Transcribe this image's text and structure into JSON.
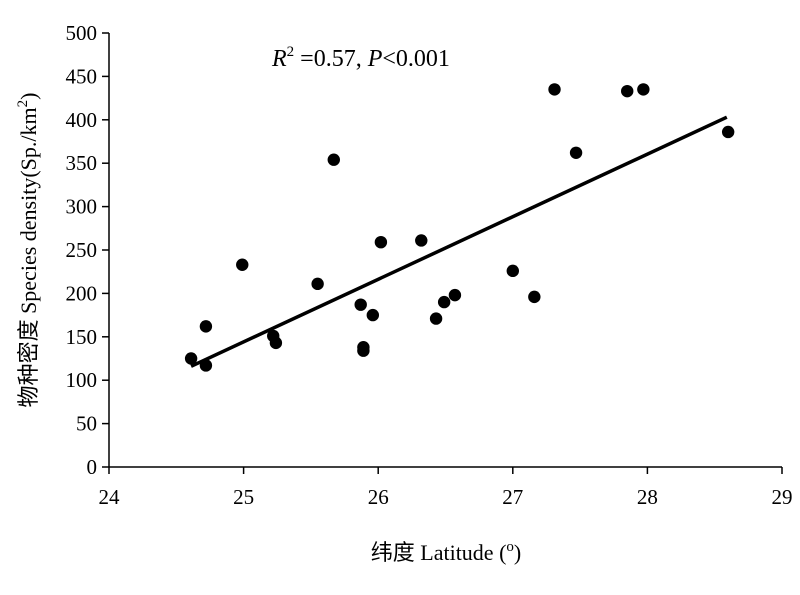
{
  "chart_data": {
    "type": "scatter",
    "xlabel": "纬度 Latitude (o)",
    "ylabel": "物种密度 Species density(Sp./km2)",
    "annotation": {
      "r_symbol": "R",
      "r_exponent": "2",
      "r_value": " =0.57, ",
      "p_symbol": "P",
      "p_value": "<0.001"
    },
    "xlim": [
      24,
      29
    ],
    "ylim": [
      0,
      500
    ],
    "x_ticks": [
      24,
      25,
      26,
      27,
      28,
      29
    ],
    "y_ticks": [
      0,
      50,
      100,
      150,
      200,
      250,
      300,
      350,
      400,
      450,
      500
    ],
    "grid": false,
    "legend": "none",
    "point_color": "#000000",
    "line_color": "#000000",
    "points": [
      {
        "x": 24.61,
        "y": 125
      },
      {
        "x": 24.72,
        "y": 162
      },
      {
        "x": 24.72,
        "y": 117
      },
      {
        "x": 24.99,
        "y": 233
      },
      {
        "x": 25.22,
        "y": 151
      },
      {
        "x": 25.24,
        "y": 143
      },
      {
        "x": 25.55,
        "y": 211
      },
      {
        "x": 25.67,
        "y": 354
      },
      {
        "x": 25.87,
        "y": 187
      },
      {
        "x": 25.89,
        "y": 138
      },
      {
        "x": 25.89,
        "y": 134
      },
      {
        "x": 25.96,
        "y": 175
      },
      {
        "x": 26.02,
        "y": 259
      },
      {
        "x": 26.32,
        "y": 261
      },
      {
        "x": 26.43,
        "y": 171
      },
      {
        "x": 26.49,
        "y": 190
      },
      {
        "x": 26.57,
        "y": 198
      },
      {
        "x": 27.0,
        "y": 226
      },
      {
        "x": 27.16,
        "y": 196
      },
      {
        "x": 27.31,
        "y": 435
      },
      {
        "x": 27.47,
        "y": 362
      },
      {
        "x": 27.85,
        "y": 433
      },
      {
        "x": 27.97,
        "y": 435
      },
      {
        "x": 28.6,
        "y": 386
      }
    ],
    "trendline": {
      "x": [
        24.61,
        28.59
      ],
      "y": [
        116,
        403
      ]
    }
  }
}
